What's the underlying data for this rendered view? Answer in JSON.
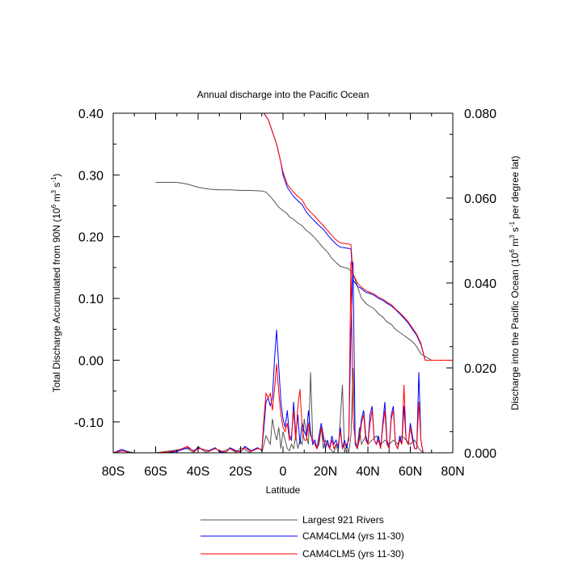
{
  "chart_data": {
    "type": "line",
    "title": "Annual discharge into the Pacific Ocean",
    "xlabel": "Latitude",
    "xlim": [
      -80,
      80
    ],
    "x_ticks": [
      -80,
      -60,
      -40,
      -20,
      0,
      20,
      40,
      60,
      80
    ],
    "x_tick_labels": [
      "80S",
      "60S",
      "40S",
      "20S",
      "0",
      "20N",
      "40N",
      "60N",
      "80N"
    ],
    "y_left": {
      "label_main": "Total Discharge Accumulated from 90N (10",
      "label_exp1": "6",
      "label_mid": " m",
      "label_exp2": "3",
      "label_mid2": " s",
      "label_exp3": "-1",
      "label_end": ")",
      "ylim": [
        -0.15,
        0.4
      ],
      "ticks": [
        -0.1,
        0.0,
        0.1,
        0.2,
        0.3,
        0.4
      ],
      "tick_labels": [
        "-0.10",
        "0.00",
        "0.10",
        "0.20",
        "0.30",
        "0.40"
      ]
    },
    "y_right": {
      "label_main": "Discharge into the Pacific Ocean (10",
      "label_exp1": "6",
      "label_mid": " m",
      "label_exp2": "3",
      "label_mid2": " s",
      "label_exp3": "-1",
      "label_end": " per degree lat)",
      "ylim": [
        0.0,
        0.08
      ],
      "ticks": [
        0.0,
        0.02,
        0.04,
        0.06,
        0.08
      ],
      "tick_labels": [
        "0.000",
        "0.020",
        "0.040",
        "0.060",
        "0.080"
      ]
    },
    "series": [
      {
        "name": "Largest 921 Rivers",
        "color": "#555555",
        "axis": "left",
        "kind": "cumulative",
        "x": [
          -60,
          -50,
          -45,
          -40,
          -35,
          -30,
          -25,
          -20,
          -15,
          -10,
          -8,
          -6,
          -4,
          -3,
          -2,
          -1,
          0,
          1,
          2,
          3,
          5,
          7,
          9,
          11,
          13,
          15,
          17,
          19,
          21,
          23,
          25,
          27,
          29,
          31,
          33,
          35,
          37,
          39,
          41,
          43,
          45,
          47,
          49,
          51,
          53,
          55,
          57,
          59,
          61,
          63,
          65,
          70,
          75,
          80
        ],
        "values": [
          0.288,
          0.288,
          0.285,
          0.28,
          0.277,
          0.276,
          0.276,
          0.275,
          0.275,
          0.274,
          0.272,
          0.265,
          0.257,
          0.252,
          0.248,
          0.245,
          0.242,
          0.24,
          0.237,
          0.232,
          0.228,
          0.222,
          0.218,
          0.21,
          0.205,
          0.198,
          0.19,
          0.182,
          0.175,
          0.165,
          0.158,
          0.152,
          0.15,
          0.148,
          0.14,
          0.12,
          0.1,
          0.092,
          0.087,
          0.083,
          0.075,
          0.07,
          0.062,
          0.058,
          0.05,
          0.045,
          0.04,
          0.035,
          0.03,
          0.022,
          0.01,
          0.0,
          0.0,
          0.0
        ]
      },
      {
        "name": "CAM4CLM4 (yrs 11-30)",
        "color": "#0000ff",
        "axis": "left",
        "kind": "cumulative",
        "x": [
          -9,
          -7,
          -5,
          -3,
          -1,
          0,
          1,
          2,
          3,
          5,
          7,
          9,
          11,
          13,
          15,
          17,
          19,
          21,
          23,
          25,
          27,
          29,
          31,
          32,
          33,
          35,
          37,
          39,
          41,
          43,
          45,
          47,
          49,
          51,
          53,
          55,
          57,
          59,
          61,
          63,
          65,
          67,
          70,
          75,
          80
        ],
        "values": [
          0.4,
          0.39,
          0.37,
          0.35,
          0.32,
          0.3,
          0.29,
          0.28,
          0.275,
          0.265,
          0.258,
          0.252,
          0.24,
          0.232,
          0.225,
          0.218,
          0.212,
          0.203,
          0.195,
          0.188,
          0.183,
          0.182,
          0.181,
          0.18,
          0.13,
          0.12,
          0.116,
          0.11,
          0.108,
          0.105,
          0.1,
          0.097,
          0.092,
          0.088,
          0.082,
          0.075,
          0.068,
          0.06,
          0.05,
          0.04,
          0.025,
          0.0,
          0.0,
          0.0,
          0.0
        ]
      },
      {
        "name": "CAM4CLM5 (yrs 11-30)",
        "color": "#ff0000",
        "axis": "left",
        "kind": "cumulative",
        "x": [
          -9,
          -7,
          -5,
          -3,
          -1,
          0,
          1,
          2,
          3,
          5,
          7,
          9,
          11,
          13,
          15,
          17,
          19,
          21,
          23,
          25,
          27,
          29,
          31,
          32,
          33,
          35,
          37,
          39,
          41,
          43,
          45,
          47,
          49,
          51,
          53,
          55,
          57,
          59,
          61,
          63,
          65,
          67,
          70,
          75,
          80
        ],
        "values": [
          0.4,
          0.39,
          0.37,
          0.35,
          0.32,
          0.305,
          0.295,
          0.285,
          0.28,
          0.272,
          0.265,
          0.26,
          0.247,
          0.24,
          0.233,
          0.225,
          0.218,
          0.21,
          0.202,
          0.195,
          0.19,
          0.189,
          0.188,
          0.187,
          0.14,
          0.125,
          0.118,
          0.113,
          0.11,
          0.107,
          0.102,
          0.099,
          0.094,
          0.09,
          0.083,
          0.077,
          0.07,
          0.062,
          0.052,
          0.042,
          0.027,
          0.0,
          0.0,
          0.0,
          0.0
        ]
      },
      {
        "name": "Largest 921 Rivers",
        "color": "#555555",
        "axis": "right",
        "kind": "per-degree",
        "x": [
          -80,
          -75,
          -70,
          -60,
          -45,
          -42,
          -40,
          -37,
          -35,
          -30,
          -25,
          -22,
          -20,
          -15,
          -10,
          -8,
          -6,
          -5,
          -4,
          -3,
          -2,
          -1,
          0,
          1,
          2,
          3,
          4,
          5,
          6,
          7,
          8,
          9,
          10,
          11,
          12,
          13,
          14,
          15,
          16,
          17,
          18,
          19,
          20,
          22,
          24,
          25,
          26,
          28,
          29,
          30,
          31,
          32,
          33,
          34,
          35,
          36,
          37,
          38,
          39,
          40,
          42,
          44,
          46,
          48,
          50,
          52,
          54,
          56,
          58,
          60,
          62,
          64,
          66,
          68,
          70,
          80
        ],
        "values": [
          0.0,
          0.0005,
          0.0,
          0.0,
          0.001,
          0.0,
          0.0015,
          0.0003,
          0.0,
          0.0,
          0.001,
          0.0,
          0.0012,
          0.0,
          0.0,
          0.004,
          0.002,
          0.008,
          0.005,
          0.003,
          0.006,
          0.001,
          0.005,
          0.003,
          0.001,
          0.0005,
          0.002,
          0.001,
          0.004,
          0.001,
          0.003,
          0.002,
          0.008,
          0.004,
          0.002,
          0.019,
          0.003,
          0.002,
          0.001,
          0.002,
          0.006,
          0.001,
          0.003,
          0.001,
          0.0,
          0.002,
          0.0,
          0.016,
          0.0,
          0.002,
          0.0,
          0.004,
          0.02,
          0.003,
          0.001,
          0.006,
          0.002,
          0.003,
          0.004,
          0.002,
          0.003,
          0.004,
          0.002,
          0.003,
          0.002,
          0.003,
          0.002,
          0.004,
          0.003,
          0.002,
          0.003,
          0.001,
          0.0,
          0.0,
          0.0,
          0.0
        ]
      },
      {
        "name": "CAM4CLM4 (yrs 11-30)",
        "color": "#0000ff",
        "axis": "right",
        "kind": "per-degree",
        "x": [
          -80,
          -76,
          -72,
          -60,
          -55,
          -50,
          -45,
          -42,
          -40,
          -38,
          -35,
          -32,
          -30,
          -27,
          -25,
          -22,
          -20,
          -18,
          -15,
          -12,
          -10,
          -9,
          -8,
          -7,
          -6,
          -5,
          -4,
          -3,
          -2,
          -1,
          0,
          1,
          2,
          3,
          4,
          5,
          6,
          7,
          8,
          9,
          10,
          11,
          12,
          13,
          14,
          15,
          16,
          17,
          18,
          19,
          20,
          21,
          22,
          23,
          24,
          25,
          26,
          27,
          28,
          29,
          30,
          31,
          32,
          33,
          34,
          35,
          36,
          37,
          38,
          39,
          40,
          41,
          42,
          43,
          44,
          45,
          46,
          47,
          48,
          49,
          50,
          51,
          52,
          53,
          54,
          55,
          56,
          57,
          58,
          59,
          60,
          61,
          62,
          63,
          64,
          65,
          66,
          67,
          70,
          80
        ],
        "values": [
          0.0,
          0.0008,
          0.0,
          0.0,
          0.0,
          0.0003,
          0.0012,
          0.0005,
          0.0012,
          0.0008,
          0.0005,
          0.0012,
          0.0003,
          0.0,
          0.0012,
          0.0005,
          0.0002,
          0.0015,
          0.0005,
          0.0012,
          0.0006,
          0.006,
          0.012,
          0.013,
          0.011,
          0.013,
          0.022,
          0.029,
          0.02,
          0.012,
          0.008,
          0.006,
          0.01,
          0.004,
          0.003,
          0.012,
          0.004,
          0.009,
          0.002,
          0.007,
          0.005,
          0.004,
          0.01,
          0.005,
          0.002,
          0.003,
          0.001,
          0.004,
          0.007,
          0.004,
          0.001,
          0.003,
          0.001,
          0.004,
          0.002,
          0.003,
          0.001,
          0.006,
          0.001,
          0.003,
          0.001,
          0.004,
          0.028,
          0.045,
          0.002,
          0.001,
          0.004,
          0.008,
          0.01,
          0.004,
          0.002,
          0.009,
          0.011,
          0.003,
          0.002,
          0.004,
          0.001,
          0.007,
          0.012,
          0.003,
          0.001,
          0.009,
          0.011,
          0.002,
          0.001,
          0.004,
          0.002,
          0.011,
          0.003,
          0.002,
          0.007,
          0.004,
          0.001,
          0.001,
          0.019,
          0.003,
          0.0,
          0.0,
          0.0,
          0.0
        ]
      },
      {
        "name": "CAM4CLM5 (yrs 11-30)",
        "color": "#ff0000",
        "axis": "right",
        "kind": "per-degree",
        "x": [
          -80,
          -76,
          -72,
          -60,
          -55,
          -50,
          -45,
          -42,
          -40,
          -38,
          -35,
          -32,
          -30,
          -27,
          -25,
          -22,
          -20,
          -18,
          -15,
          -12,
          -10,
          -9,
          -8,
          -7,
          -6,
          -5,
          -4,
          -3,
          -2,
          -1,
          0,
          1,
          2,
          3,
          4,
          5,
          6,
          7,
          8,
          9,
          10,
          11,
          12,
          13,
          14,
          15,
          16,
          17,
          18,
          19,
          20,
          21,
          22,
          23,
          24,
          25,
          26,
          27,
          28,
          29,
          30,
          31,
          32,
          33,
          34,
          35,
          36,
          37,
          38,
          39,
          40,
          41,
          42,
          43,
          44,
          45,
          46,
          47,
          48,
          49,
          50,
          51,
          52,
          53,
          54,
          55,
          56,
          57,
          58,
          59,
          60,
          61,
          62,
          63,
          64,
          65,
          66,
          67,
          70,
          80
        ],
        "values": [
          0.0,
          0.0005,
          0.0,
          0.0,
          0.0002,
          0.0005,
          0.0015,
          0.0003,
          0.001,
          0.0009,
          0.0003,
          0.001,
          0.0005,
          0.0002,
          0.001,
          0.0003,
          0.0004,
          0.0012,
          0.0003,
          0.001,
          0.0008,
          0.008,
          0.014,
          0.013,
          0.014,
          0.01,
          0.015,
          0.021,
          0.014,
          0.009,
          0.006,
          0.005,
          0.007,
          0.003,
          0.004,
          0.01,
          0.003,
          0.011,
          0.015,
          0.006,
          0.003,
          0.003,
          0.007,
          0.004,
          0.003,
          0.002,
          0.001,
          0.003,
          0.006,
          0.003,
          0.002,
          0.002,
          0.001,
          0.003,
          0.001,
          0.002,
          0.002,
          0.005,
          0.001,
          0.002,
          0.002,
          0.003,
          0.045,
          0.008,
          0.003,
          0.001,
          0.003,
          0.007,
          0.009,
          0.003,
          0.002,
          0.007,
          0.01,
          0.003,
          0.002,
          0.003,
          0.001,
          0.006,
          0.01,
          0.002,
          0.001,
          0.008,
          0.01,
          0.002,
          0.001,
          0.003,
          0.002,
          0.016,
          0.003,
          0.002,
          0.006,
          0.003,
          0.001,
          0.001,
          0.012,
          0.003,
          0.0,
          0.0,
          0.0,
          0.0
        ]
      }
    ],
    "legend": {
      "position": "bottom",
      "entries": [
        {
          "label": "Largest 921 Rivers",
          "color": "#555555"
        },
        {
          "label": "CAM4CLM4 (yrs 11-30)",
          "color": "#0000ff"
        },
        {
          "label": "CAM4CLM5 (yrs 11-30)",
          "color": "#ff0000"
        }
      ]
    }
  }
}
